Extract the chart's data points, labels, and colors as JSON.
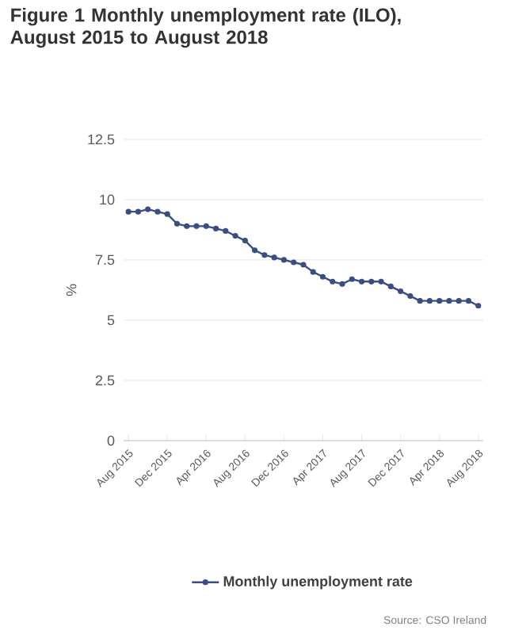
{
  "chart_data": {
    "type": "line",
    "title": "Figure 1 Monthly unemployment rate (ILO), August 2015 to August 2018",
    "ylabel": "%",
    "categories": [
      "Aug 2015",
      null,
      null,
      null,
      "Dec 2015",
      null,
      null,
      null,
      "Apr 2016",
      null,
      null,
      null,
      "Aug 2016",
      null,
      null,
      null,
      "Dec 2016",
      null,
      null,
      null,
      "Apr 2017",
      null,
      null,
      null,
      "Aug 2017",
      null,
      null,
      null,
      "Dec 2017",
      null,
      null,
      null,
      "Apr 2018",
      null,
      null,
      null,
      "Aug 2018"
    ],
    "series": [
      {
        "name": "Monthly unemployment rate",
        "color": "#3a4e82",
        "values": [
          9.5,
          9.5,
          9.6,
          9.5,
          9.4,
          9.0,
          8.9,
          8.9,
          8.9,
          8.8,
          8.7,
          8.5,
          8.3,
          7.9,
          7.7,
          7.6,
          7.5,
          7.4,
          7.3,
          7.0,
          6.8,
          6.6,
          6.5,
          6.7,
          6.6,
          6.6,
          6.6,
          6.4,
          6.2,
          6.0,
          5.8,
          5.8,
          5.8,
          5.8,
          5.8,
          5.8,
          5.6
        ]
      }
    ],
    "ylim": [
      0,
      12.5
    ],
    "yticks": [
      0,
      2.5,
      5,
      7.5,
      10,
      12.5
    ],
    "grid": "y",
    "legend": "bottom",
    "marker": "circle",
    "line_style": "solid",
    "annotations": [
      "Source: CSO Ireland"
    ]
  }
}
